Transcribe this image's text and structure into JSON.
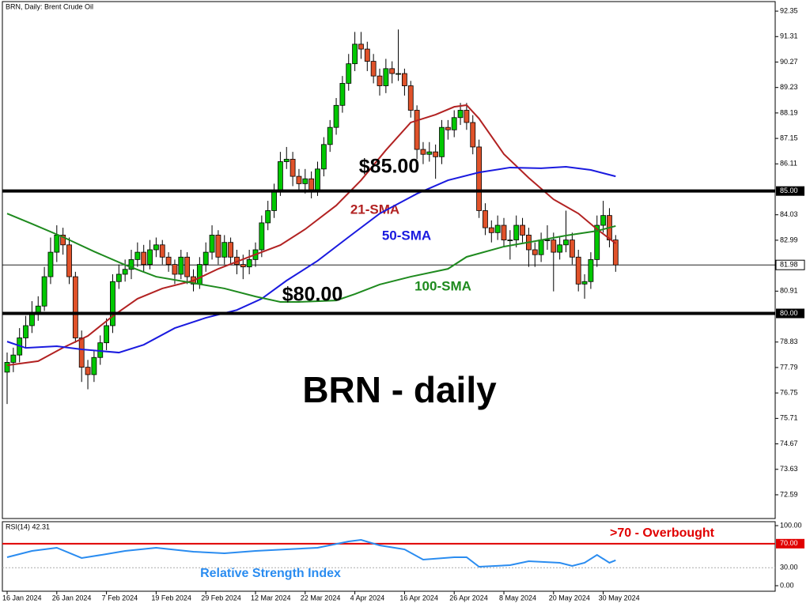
{
  "chart_data": {
    "type": "candlestick",
    "title": "BRN, Daily:  Brent Crude Oil",
    "heading": "BRN - daily",
    "up_color": "#00c800",
    "down_color": "#e0522a",
    "candles": [
      [
        77.6,
        78.4,
        76.3,
        78.0
      ],
      [
        78.0,
        78.6,
        77.6,
        78.3
      ],
      [
        78.3,
        79.4,
        78.0,
        79.0
      ],
      [
        79.0,
        79.9,
        78.6,
        79.5
      ],
      [
        79.5,
        80.5,
        79.2,
        80.0
      ],
      [
        80.0,
        80.7,
        79.7,
        80.3
      ],
      [
        80.3,
        81.9,
        80.1,
        81.5
      ],
      [
        81.5,
        83.1,
        81.2,
        82.5
      ],
      [
        82.5,
        83.6,
        82.1,
        83.2
      ],
      [
        83.2,
        83.5,
        82.4,
        82.8
      ],
      [
        82.8,
        83.1,
        81.2,
        81.5
      ],
      [
        81.5,
        81.7,
        78.8,
        79.0
      ],
      [
        79.0,
        79.3,
        77.2,
        77.8
      ],
      [
        77.8,
        78.1,
        76.9,
        77.5
      ],
      [
        77.5,
        78.5,
        77.2,
        78.2
      ],
      [
        78.2,
        79.1,
        77.9,
        78.8
      ],
      [
        78.8,
        79.8,
        78.5,
        79.5
      ],
      [
        79.5,
        81.6,
        79.2,
        81.3
      ],
      [
        81.3,
        82.0,
        81.0,
        81.6
      ],
      [
        81.6,
        82.2,
        81.3,
        81.8
      ],
      [
        81.8,
        82.6,
        81.4,
        82.2
      ],
      [
        82.2,
        82.9,
        81.9,
        82.5
      ],
      [
        82.5,
        82.8,
        81.7,
        82.0
      ],
      [
        82.0,
        83.0,
        81.8,
        82.6
      ],
      [
        82.6,
        83.1,
        82.3,
        82.8
      ],
      [
        82.8,
        83.0,
        82.0,
        82.3
      ],
      [
        82.3,
        82.5,
        81.7,
        82.0
      ],
      [
        82.0,
        82.2,
        81.2,
        81.6
      ],
      [
        81.6,
        82.6,
        81.4,
        82.3
      ],
      [
        82.3,
        82.5,
        81.2,
        81.5
      ],
      [
        81.5,
        81.8,
        80.9,
        81.2
      ],
      [
        81.2,
        82.3,
        81.0,
        82.0
      ],
      [
        82.0,
        82.9,
        81.7,
        82.5
      ],
      [
        82.5,
        83.6,
        82.2,
        83.2
      ],
      [
        83.2,
        83.4,
        82.0,
        82.3
      ],
      [
        82.3,
        83.2,
        82.0,
        82.9
      ],
      [
        82.9,
        83.1,
        82.0,
        82.3
      ],
      [
        82.3,
        82.6,
        81.6,
        82.0
      ],
      [
        82.0,
        82.4,
        81.4,
        81.9
      ],
      [
        81.9,
        82.6,
        81.6,
        82.2
      ],
      [
        82.2,
        82.9,
        81.9,
        82.6
      ],
      [
        82.6,
        84.0,
        82.3,
        83.7
      ],
      [
        83.7,
        84.6,
        83.4,
        84.2
      ],
      [
        84.2,
        85.3,
        83.9,
        85.0
      ],
      [
        85.0,
        86.6,
        84.8,
        86.2
      ],
      [
        86.2,
        86.8,
        85.9,
        86.3
      ],
      [
        86.3,
        86.6,
        85.2,
        85.6
      ],
      [
        85.6,
        85.9,
        85.0,
        85.3
      ],
      [
        85.3,
        85.9,
        84.9,
        85.5
      ],
      [
        85.5,
        85.8,
        84.7,
        85.0
      ],
      [
        85.0,
        86.2,
        84.8,
        85.9
      ],
      [
        85.9,
        87.2,
        85.6,
        86.9
      ],
      [
        86.9,
        87.9,
        86.6,
        87.6
      ],
      [
        87.6,
        88.8,
        87.3,
        88.5
      ],
      [
        88.5,
        89.7,
        88.2,
        89.4
      ],
      [
        89.4,
        90.6,
        89.1,
        90.2
      ],
      [
        90.2,
        91.5,
        89.9,
        91.0
      ],
      [
        91.0,
        91.5,
        90.4,
        90.8
      ],
      [
        90.8,
        91.1,
        89.9,
        90.3
      ],
      [
        90.3,
        90.6,
        89.4,
        89.7
      ],
      [
        89.7,
        90.0,
        88.9,
        89.3
      ],
      [
        89.3,
        90.4,
        89.0,
        90.0
      ],
      [
        90.0,
        90.3,
        89.4,
        89.8
      ],
      [
        89.8,
        91.6,
        89.5,
        89.8
      ],
      [
        89.8,
        90.0,
        88.9,
        89.3
      ],
      [
        89.3,
        89.5,
        88.0,
        88.3
      ],
      [
        88.3,
        88.5,
        86.3,
        86.7
      ],
      [
        86.7,
        87.0,
        86.1,
        86.5
      ],
      [
        86.5,
        87.0,
        86.2,
        86.6
      ],
      [
        86.6,
        86.9,
        85.5,
        86.4
      ],
      [
        86.4,
        87.9,
        86.1,
        87.6
      ],
      [
        87.6,
        87.9,
        87.1,
        87.5
      ],
      [
        87.5,
        88.3,
        87.2,
        88.0
      ],
      [
        88.0,
        88.6,
        87.7,
        88.3
      ],
      [
        88.3,
        88.6,
        87.5,
        87.8
      ],
      [
        87.8,
        88.1,
        86.5,
        86.8
      ],
      [
        86.8,
        87.1,
        83.9,
        84.2
      ],
      [
        84.2,
        84.5,
        83.2,
        83.5
      ],
      [
        83.5,
        83.8,
        82.9,
        83.3
      ],
      [
        83.3,
        84.0,
        83.0,
        83.6
      ],
      [
        83.6,
        83.9,
        82.7,
        83.0
      ],
      [
        83.0,
        83.4,
        82.2,
        83.0
      ],
      [
        83.0,
        84.0,
        82.7,
        83.6
      ],
      [
        83.6,
        83.9,
        82.9,
        83.2
      ],
      [
        83.2,
        83.5,
        81.9,
        82.6
      ],
      [
        82.6,
        82.9,
        81.9,
        82.4
      ],
      [
        82.4,
        83.3,
        82.1,
        83.0
      ],
      [
        83.0,
        83.6,
        82.6,
        83.0
      ],
      [
        83.0,
        83.3,
        80.9,
        82.5
      ],
      [
        82.5,
        83.1,
        82.2,
        82.8
      ],
      [
        82.8,
        84.2,
        82.5,
        83.0
      ],
      [
        83.0,
        83.3,
        82.0,
        82.3
      ],
      [
        82.3,
        82.6,
        80.9,
        81.2
      ],
      [
        81.2,
        81.6,
        80.6,
        81.3
      ],
      [
        81.3,
        82.5,
        81.0,
        82.2
      ],
      [
        82.2,
        84.0,
        81.9,
        83.6
      ],
      [
        83.6,
        84.6,
        83.3,
        84.0
      ],
      [
        84.0,
        84.3,
        82.7,
        83.0
      ],
      [
        83.0,
        83.2,
        81.7,
        81.98
      ]
    ],
    "xticks": [
      {
        "value": 0,
        "label": "16 Jan 2024"
      },
      {
        "value": 8,
        "label": "26 Jan 2024"
      },
      {
        "value": 16,
        "label": "7 Feb 2024"
      },
      {
        "value": 24,
        "label": "19 Feb 2024"
      },
      {
        "value": 32,
        "label": "29 Feb 2024"
      },
      {
        "value": 40,
        "label": "12 Mar 2024"
      },
      {
        "value": 48,
        "label": "22 Mar 2024"
      },
      {
        "value": 56,
        "label": "4 Apr 2024"
      },
      {
        "value": 64,
        "label": "16 Apr 2024"
      },
      {
        "value": 72,
        "label": "26 Apr 2024"
      },
      {
        "value": 80,
        "label": "8 May 2024"
      },
      {
        "value": 88,
        "label": "20 May 2024"
      },
      {
        "value": 96,
        "label": "30 May 2024"
      }
    ],
    "ylim": [
      71.62,
      92.74
    ],
    "yticks": [
      92.35,
      91.31,
      90.27,
      89.23,
      88.19,
      87.15,
      86.11,
      84.03,
      82.99,
      80.91,
      78.83,
      77.79,
      76.75,
      75.71,
      74.67,
      73.63,
      72.59
    ],
    "levels": [
      {
        "value": 85,
        "label": "85.00"
      },
      {
        "value": 80,
        "label": "80.00"
      }
    ],
    "level_annotations": [
      "$85.00",
      "$80.00"
    ],
    "last_price": {
      "value": 81.98,
      "label": "81.98"
    },
    "series": [
      {
        "name": "21-SMA",
        "color": "#b22222",
        "x": [
          0,
          5,
          9,
          13,
          17,
          21,
          25,
          30,
          34,
          39,
          44,
          48,
          53,
          57,
          61,
          65,
          69,
          72,
          74,
          76,
          80,
          84,
          88,
          92,
          95,
          98
        ],
        "values": [
          77.88,
          78.05,
          78.6,
          79.08,
          79.89,
          80.6,
          81.02,
          81.34,
          81.82,
          82.31,
          82.79,
          83.44,
          84.41,
          85.44,
          86.67,
          87.8,
          88.12,
          88.44,
          88.51,
          87.96,
          86.51,
          85.54,
          84.66,
          84.08,
          83.44,
          82.86
        ]
      },
      {
        "name": "50-SMA",
        "color": "#1a1adf",
        "x": [
          0,
          3,
          8,
          12,
          18,
          22,
          27,
          32,
          37,
          41,
          45,
          50,
          55,
          60,
          66,
          71,
          76,
          81,
          86,
          90,
          94,
          98
        ],
        "values": [
          78.85,
          78.59,
          78.66,
          78.53,
          78.4,
          78.72,
          79.4,
          79.82,
          80.14,
          80.6,
          81.34,
          82.15,
          83.12,
          84.08,
          84.89,
          85.44,
          85.76,
          85.96,
          85.93,
          85.99,
          85.86,
          85.6
        ]
      },
      {
        "name": "100-SMA",
        "color": "#1e8a1e",
        "x": [
          0,
          4,
          9,
          14,
          19,
          24,
          30,
          35,
          40,
          44,
          47,
          53,
          56,
          60,
          65,
          71,
          74,
          80,
          85,
          90,
          95,
          98
        ],
        "values": [
          84.08,
          83.66,
          83.12,
          82.53,
          81.98,
          81.5,
          81.24,
          81.02,
          80.69,
          80.47,
          80.47,
          80.53,
          80.79,
          81.18,
          81.5,
          81.82,
          82.31,
          82.73,
          82.95,
          83.18,
          83.37,
          83.57
        ]
      }
    ],
    "rsi": {
      "title": "RSI(14) 42.31",
      "ylim": [
        -9.2,
        106.6
      ],
      "yticks": [
        {
          "value": 100,
          "label": "100.00"
        },
        {
          "value": 0,
          "label": "0.00"
        }
      ],
      "levels": [
        {
          "value": 70,
          "label": "70.00",
          "color": "#e00000",
          "style": "solid"
        },
        {
          "value": 30,
          "label": "30.00",
          "color": "#aaaaaa",
          "style": "dotted"
        }
      ],
      "series": {
        "color": "#2a8cf0",
        "x": [
          0,
          4,
          8,
          12,
          16,
          19,
          24,
          30,
          35,
          40,
          45,
          50,
          55,
          57,
          60,
          64,
          67,
          72,
          74,
          76,
          81,
          84,
          89,
          91,
          93,
          95,
          97,
          98
        ],
        "values": [
          47.4,
          57.9,
          63.2,
          46.1,
          52.6,
          57.9,
          63.2,
          56.6,
          53.9,
          57.9,
          60.5,
          63.2,
          73.7,
          76.3,
          67.1,
          60.5,
          43.4,
          47.4,
          47.4,
          31.6,
          34.2,
          40.8,
          38.2,
          32.9,
          38.2,
          51.3,
          38.2,
          42.31
        ]
      },
      "annotations": [
        {
          "text": ">70 - Overbought",
          "color": "#e00000"
        },
        {
          "text": "Relative Strength Index",
          "color": "#2a8cf0"
        }
      ]
    }
  }
}
